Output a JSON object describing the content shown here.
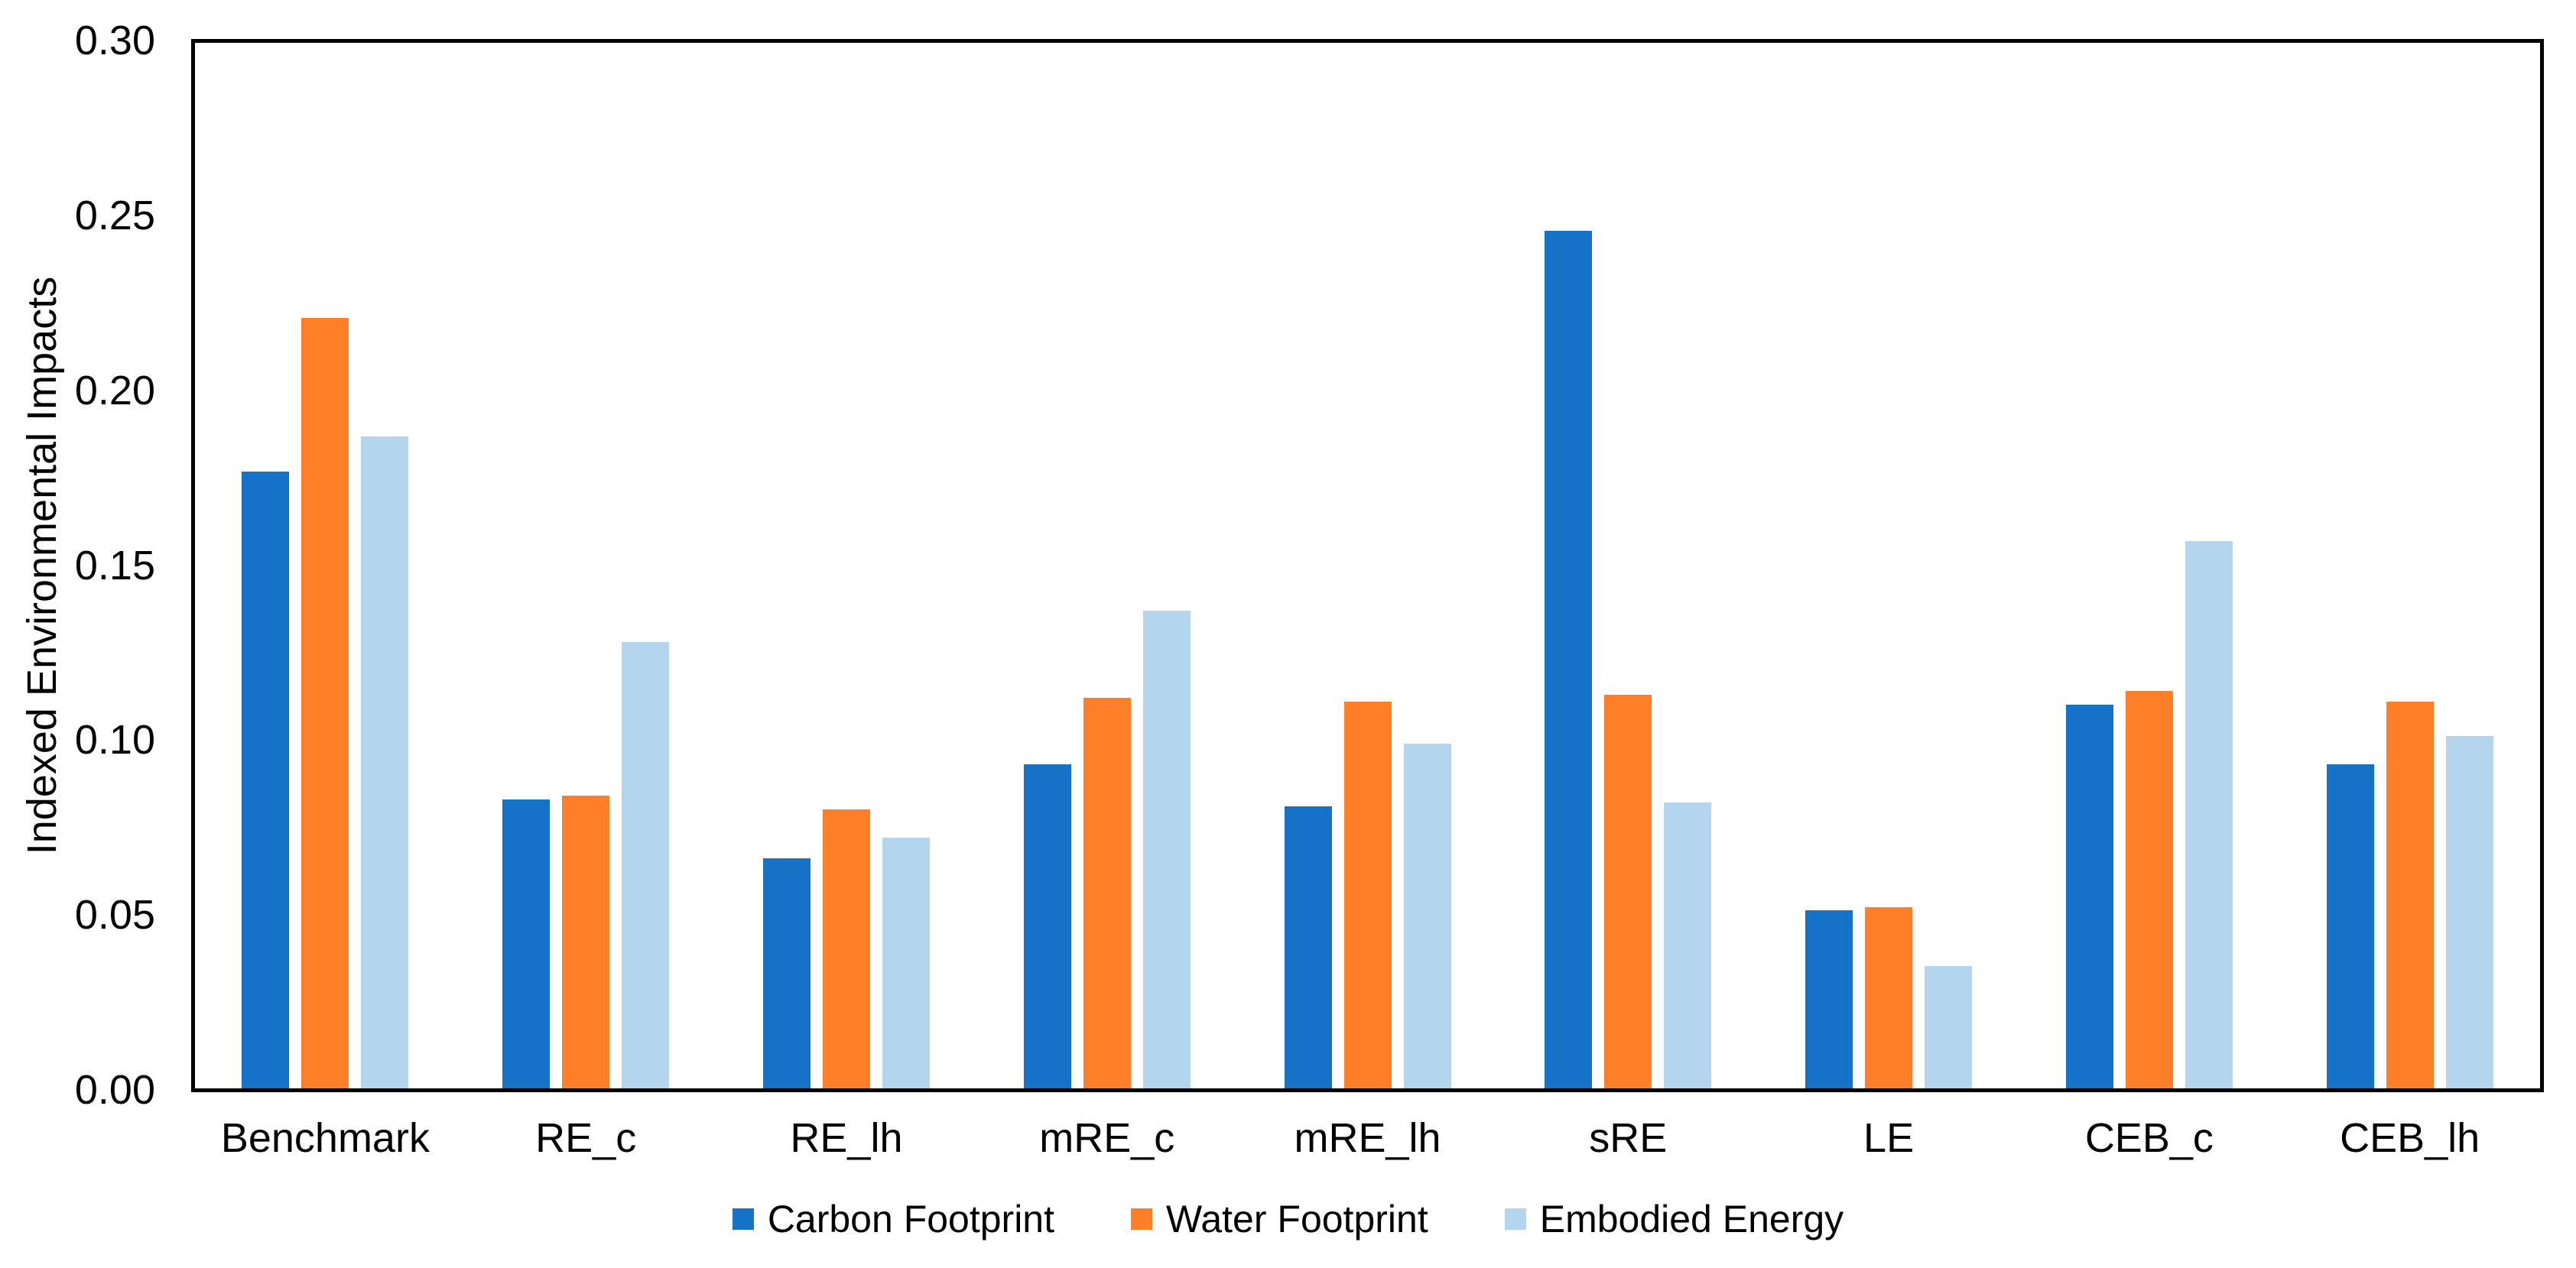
{
  "chart_data": {
    "type": "bar",
    "ylabel": "Indexed Environmental Impacts",
    "xlabel": "",
    "ylim": [
      0,
      0.3
    ],
    "ytick_step": 0.05,
    "ytick_labels": [
      "0.30",
      "0.25",
      "0.20",
      "0.15",
      "0.10",
      "0.05",
      "0.00"
    ],
    "grid": false,
    "legend_position": "bottom-center",
    "plot_border_color": "#000000",
    "background_color": "#ffffff",
    "categories": [
      "Benchmark",
      "RE_c",
      "RE_lh",
      "mRE_c",
      "mRE_lh",
      "sRE",
      "LE",
      "CEB_c",
      "CEB_lh"
    ],
    "series": [
      {
        "name": "Carbon Footprint",
        "color": "#1572C6",
        "values": [
          0.177,
          0.083,
          0.066,
          0.093,
          0.081,
          0.246,
          0.051,
          0.11,
          0.093
        ]
      },
      {
        "name": "Water Footprint",
        "color": "#FF7E28",
        "values": [
          0.221,
          0.084,
          0.08,
          0.112,
          0.111,
          0.113,
          0.052,
          0.114,
          0.111
        ]
      },
      {
        "name": "Embodied Energy",
        "color": "#B3D6EE",
        "values": [
          0.187,
          0.128,
          0.072,
          0.137,
          0.099,
          0.082,
          0.035,
          0.157,
          0.101
        ]
      }
    ]
  }
}
